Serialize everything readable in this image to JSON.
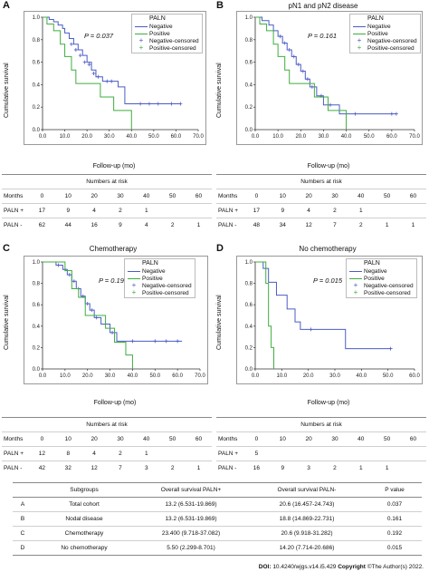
{
  "footer": {
    "doi": "DOI:",
    "doi_value": "10.4240/wjgs.v14.i5.429",
    "copyright_label": "Copyright",
    "copyright_text": "©The Author(s) 2022."
  },
  "legend_items": [
    "Negative",
    "Positive",
    "Negative-censored",
    "Positive-censored"
  ],
  "colors": {
    "negative": "#4b5cc4",
    "positive": "#3fae3f",
    "box": "#999999"
  },
  "panels": [
    {
      "letter": "A",
      "title": "",
      "legend_title": "PALN",
      "p_text": "P = 0.037",
      "ylabel": "Cumulative survival",
      "xlabel": "Follow-up (mo)",
      "risk": {
        "title": "Numbers at risk",
        "months_label": "Months",
        "months": [
          "0",
          "10",
          "20",
          "30",
          "40",
          "50",
          "60"
        ],
        "rows": [
          {
            "label": "PALN +",
            "values": [
              "17",
              "9",
              "4",
              "2",
              "1",
              "",
              ""
            ]
          },
          {
            "label": "PALN -",
            "values": [
              "62",
              "44",
              "16",
              "9",
              "4",
              "2",
              "1"
            ]
          }
        ]
      }
    },
    {
      "letter": "B",
      "title": "pN1 and pN2 disease",
      "legend_title": "PALN",
      "p_text": "P = 0.161",
      "ylabel": "Cumulative survival",
      "xlabel": "Follow-up (mo)",
      "risk": {
        "title": "Numbers at risk",
        "months_label": "Months",
        "months": [
          "0",
          "10",
          "20",
          "30",
          "40",
          "50",
          "60"
        ],
        "rows": [
          {
            "label": "PALN +",
            "values": [
              "17",
              "9",
              "4",
              "2",
              "1",
              "",
              ""
            ]
          },
          {
            "label": "PALN -",
            "values": [
              "48",
              "34",
              "12",
              "7",
              "2",
              "1",
              "1"
            ]
          }
        ]
      }
    },
    {
      "letter": "C",
      "title": "Chemotherapy",
      "legend_title": "PALN",
      "p_text": "P = 0.192",
      "ylabel": "Cumulative survival",
      "xlabel": "Follow-up (mo)",
      "risk": {
        "title": "Numbers at risk",
        "months_label": "Months",
        "months": [
          "0",
          "10",
          "20",
          "30",
          "40",
          "50",
          "60"
        ],
        "rows": [
          {
            "label": "PALN +",
            "values": [
              "12",
              "8",
              "4",
              "2",
              "1",
              "",
              ""
            ]
          },
          {
            "label": "PALN -",
            "values": [
              "42",
              "32",
              "12",
              "7",
              "3",
              "2",
              "1"
            ]
          }
        ]
      }
    },
    {
      "letter": "D",
      "title": "No chemotherapy",
      "legend_title": "PALN",
      "p_text": "P = 0.015",
      "ylabel": "Cumulative survival",
      "xlabel": "Follow-up (mo)",
      "risk": {
        "title": "Numbers at risk",
        "months_label": "Months",
        "months": [
          "0",
          "10",
          "20",
          "30",
          "40",
          "50",
          "60"
        ],
        "rows": [
          {
            "label": "PALN +",
            "values": [
              "5",
              "",
              "",
              "",
              "",
              "",
              ""
            ]
          },
          {
            "label": "PALN -",
            "values": [
              "16",
              "9",
              "3",
              "2",
              "1",
              "1",
              ""
            ]
          }
        ]
      }
    }
  ],
  "subgroups": {
    "headers": [
      "",
      "Subgroups",
      "Overall survival PALN+",
      "Overall survival PALN-",
      "P value"
    ],
    "rows": [
      [
        "A",
        "Total cohort",
        "13.2 (6.531-19.869)",
        "20.6 (16.457-24.743)",
        "0.037"
      ],
      [
        "B",
        "Nodal disease",
        "13.2 (6.531-19.869)",
        "18.8 (14.869-22.731)",
        "0.161"
      ],
      [
        "C",
        "Chemotherapy",
        "23.400 (9.718-37.082)",
        "20.6 (9.918-31.282)",
        "0.192"
      ],
      [
        "D",
        "No chemotherapy",
        "5.50 (2.299-8.701)",
        "14.20 (7.714-20.686)",
        "0.015"
      ]
    ]
  },
  "chart_data": [
    {
      "type": "line",
      "title": "",
      "xlabel": "Follow-up (mo)",
      "ylabel": "Cumulative survival",
      "xlim": [
        0,
        70
      ],
      "ylim": [
        0,
        1.0
      ],
      "xticks": [
        0,
        10,
        20,
        30,
        40,
        50,
        60,
        70
      ],
      "xtick_labels": [
        "0.0",
        "10.0",
        "20.0",
        "30.0",
        "40.0",
        "50.0",
        "60.0",
        "70.0"
      ],
      "yticks": [
        0,
        0.2,
        0.4,
        0.6,
        0.8,
        1.0
      ],
      "ytick_labels": [
        "0.0",
        "0.2",
        "0.4",
        "0.6",
        "0.8",
        "1.0"
      ],
      "series": [
        {
          "name": "Negative",
          "steps": [
            [
              0,
              1.0
            ],
            [
              3,
              0.98
            ],
            [
              5,
              0.96
            ],
            [
              7,
              0.93
            ],
            [
              9,
              0.9
            ],
            [
              10,
              0.86
            ],
            [
              12,
              0.81
            ],
            [
              14,
              0.76
            ],
            [
              16,
              0.71
            ],
            [
              18,
              0.66
            ],
            [
              20,
              0.6
            ],
            [
              22,
              0.53
            ],
            [
              24,
              0.47
            ],
            [
              27,
              0.43
            ],
            [
              34,
              0.38
            ],
            [
              37,
              0.23
            ]
          ],
          "end": 62,
          "censored": [
            [
              13,
              0.76
            ],
            [
              15,
              0.71
            ],
            [
              17,
              0.66
            ],
            [
              19,
              0.6
            ],
            [
              21,
              0.58
            ],
            [
              23,
              0.5
            ],
            [
              25,
              0.47
            ],
            [
              29,
              0.43
            ],
            [
              31,
              0.43
            ],
            [
              44,
              0.23
            ],
            [
              48,
              0.23
            ],
            [
              52,
              0.23
            ],
            [
              58,
              0.23
            ],
            [
              62,
              0.23
            ]
          ]
        },
        {
          "name": "Positive",
          "steps": [
            [
              0,
              1.0
            ],
            [
              2,
              0.94
            ],
            [
              5,
              0.88
            ],
            [
              8,
              0.76
            ],
            [
              10,
              0.65
            ],
            [
              13,
              0.53
            ],
            [
              15,
              0.41
            ],
            [
              26,
              0.29
            ],
            [
              32,
              0.17
            ],
            [
              40,
              0.0
            ]
          ],
          "end": 40,
          "censored": []
        }
      ]
    },
    {
      "type": "line",
      "title": "pN1 and pN2 disease",
      "xlabel": "Follow-up (mo)",
      "ylabel": "Cumulative survival",
      "xlim": [
        0,
        70
      ],
      "ylim": [
        0,
        1.0
      ],
      "xticks": [
        0,
        10,
        20,
        30,
        40,
        50,
        60,
        70
      ],
      "xtick_labels": [
        "0.0",
        "10.0",
        "20.0",
        "30.0",
        "40.0",
        "50.0",
        "60.0",
        "70.0"
      ],
      "yticks": [
        0,
        0.2,
        0.4,
        0.6,
        0.8,
        1.0
      ],
      "ytick_labels": [
        "0.0",
        "0.2",
        "0.4",
        "0.6",
        "0.8",
        "1.0"
      ],
      "series": [
        {
          "name": "Negative",
          "steps": [
            [
              0,
              1.0
            ],
            [
              3,
              0.97
            ],
            [
              6,
              0.93
            ],
            [
              8,
              0.88
            ],
            [
              10,
              0.83
            ],
            [
              12,
              0.77
            ],
            [
              14,
              0.71
            ],
            [
              16,
              0.65
            ],
            [
              18,
              0.58
            ],
            [
              20,
              0.52
            ],
            [
              22,
              0.45
            ],
            [
              24,
              0.38
            ],
            [
              27,
              0.3
            ],
            [
              30,
              0.22
            ],
            [
              37,
              0.14
            ]
          ],
          "end": 62,
          "censored": [
            [
              11,
              0.83
            ],
            [
              13,
              0.77
            ],
            [
              15,
              0.71
            ],
            [
              17,
              0.65
            ],
            [
              19,
              0.58
            ],
            [
              21,
              0.52
            ],
            [
              23,
              0.45
            ],
            [
              25,
              0.38
            ],
            [
              29,
              0.3
            ],
            [
              33,
              0.22
            ],
            [
              44,
              0.14
            ],
            [
              60,
              0.14
            ],
            [
              62,
              0.14
            ]
          ]
        },
        {
          "name": "Positive",
          "steps": [
            [
              0,
              1.0
            ],
            [
              2,
              0.94
            ],
            [
              5,
              0.88
            ],
            [
              8,
              0.76
            ],
            [
              10,
              0.65
            ],
            [
              13,
              0.53
            ],
            [
              15,
              0.41
            ],
            [
              26,
              0.29
            ],
            [
              32,
              0.17
            ],
            [
              40,
              0.0
            ]
          ],
          "end": 40,
          "censored": []
        }
      ]
    },
    {
      "type": "line",
      "title": "Chemotherapy",
      "xlabel": "Follow-up (mo)",
      "ylabel": "Cumulative survival",
      "xlim": [
        0,
        70
      ],
      "ylim": [
        0,
        1.0
      ],
      "xticks": [
        0,
        10,
        20,
        30,
        40,
        50,
        60,
        70
      ],
      "xtick_labels": [
        "0.0",
        "10.0",
        "20.0",
        "30.0",
        "40.0",
        "50.0",
        "60.0",
        "70.0"
      ],
      "yticks": [
        0,
        0.2,
        0.4,
        0.6,
        0.8,
        1.0
      ],
      "ytick_labels": [
        "0.0",
        "0.2",
        "0.4",
        "0.6",
        "0.8",
        "1.0"
      ],
      "series": [
        {
          "name": "Negative",
          "steps": [
            [
              0,
              1.0
            ],
            [
              6,
              0.97
            ],
            [
              9,
              0.93
            ],
            [
              11,
              0.88
            ],
            [
              13,
              0.82
            ],
            [
              15,
              0.75
            ],
            [
              17,
              0.68
            ],
            [
              19,
              0.61
            ],
            [
              21,
              0.55
            ],
            [
              23,
              0.48
            ],
            [
              26,
              0.42
            ],
            [
              30,
              0.34
            ],
            [
              33,
              0.26
            ]
          ],
          "end": 62,
          "censored": [
            [
              7,
              0.97
            ],
            [
              10,
              0.93
            ],
            [
              12,
              0.88
            ],
            [
              14,
              0.82
            ],
            [
              16,
              0.75
            ],
            [
              18,
              0.68
            ],
            [
              20,
              0.61
            ],
            [
              22,
              0.55
            ],
            [
              24,
              0.48
            ],
            [
              28,
              0.42
            ],
            [
              31,
              0.34
            ],
            [
              40,
              0.26
            ],
            [
              50,
              0.26
            ],
            [
              55,
              0.26
            ],
            [
              60,
              0.26
            ]
          ]
        },
        {
          "name": "Positive",
          "steps": [
            [
              0,
              1.0
            ],
            [
              10,
              0.92
            ],
            [
              13,
              0.75
            ],
            [
              16,
              0.67
            ],
            [
              19,
              0.5
            ],
            [
              28,
              0.38
            ],
            [
              32,
              0.25
            ],
            [
              37,
              0.13
            ],
            [
              40,
              0.0
            ]
          ],
          "end": 40,
          "censored": []
        }
      ]
    },
    {
      "type": "line",
      "title": "No chemotherapy",
      "xlabel": "Follow-up (mo)",
      "ylabel": "Cumulative survival",
      "xlim": [
        0,
        60
      ],
      "ylim": [
        0,
        1.0
      ],
      "xticks": [
        0,
        10,
        20,
        30,
        40,
        50,
        60
      ],
      "xtick_labels": [
        "0.0",
        "10.0",
        "20.0",
        "30.0",
        "40.0",
        "50.0",
        "60.0"
      ],
      "yticks": [
        0,
        0.2,
        0.4,
        0.6,
        0.8,
        1.0
      ],
      "ytick_labels": [
        "0.0",
        "0.2",
        "0.4",
        "0.6",
        "0.8",
        "1.0"
      ],
      "series": [
        {
          "name": "Negative",
          "steps": [
            [
              0,
              1.0
            ],
            [
              3,
              0.94
            ],
            [
              5,
              0.81
            ],
            [
              8,
              0.69
            ],
            [
              12,
              0.56
            ],
            [
              15,
              0.44
            ],
            [
              17,
              0.37
            ],
            [
              34,
              0.19
            ]
          ],
          "end": 51,
          "censored": [
            [
              21,
              0.37
            ],
            [
              51,
              0.19
            ]
          ]
        },
        {
          "name": "Positive",
          "steps": [
            [
              0,
              1.0
            ],
            [
              4,
              0.8
            ],
            [
              5,
              0.4
            ],
            [
              6,
              0.2
            ],
            [
              7,
              0.0
            ]
          ],
          "end": 7,
          "censored": []
        }
      ]
    }
  ]
}
